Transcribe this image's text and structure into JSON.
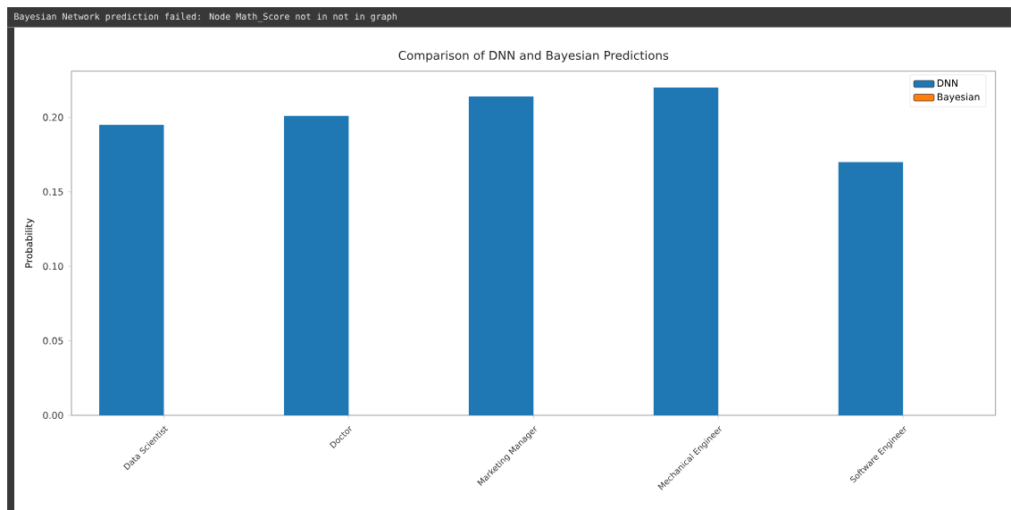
{
  "chart_data": {
    "type": "bar",
    "title": "Comparison of DNN and Bayesian Predictions",
    "ylabel": "Probability",
    "categories": [
      "Data Scientist",
      "Doctor",
      "Marketing Manager",
      "Mechanical Engineer",
      "Software Engineer"
    ],
    "series": [
      {
        "name": "DNN",
        "color": "#1f77b4",
        "values": [
          0.195,
          0.201,
          0.214,
          0.22,
          0.17
        ]
      },
      {
        "name": "Bayesian",
        "color": "#ff7f0e",
        "values": [
          0,
          0,
          0,
          0,
          0
        ]
      }
    ],
    "ylim": [
      0,
      0.231
    ],
    "yticks": [
      {
        "value": 0,
        "label": "0.00"
      },
      {
        "value": 0.05,
        "label": "0.05"
      },
      {
        "value": 0.1,
        "label": "0.10"
      },
      {
        "value": 0.15,
        "label": "0.15"
      },
      {
        "value": 0.2,
        "label": "0.20"
      }
    ],
    "legend": "top right",
    "annotations": [
      "Bayesian Network prediction failed: Node Math_Score not in not in graph"
    ]
  }
}
